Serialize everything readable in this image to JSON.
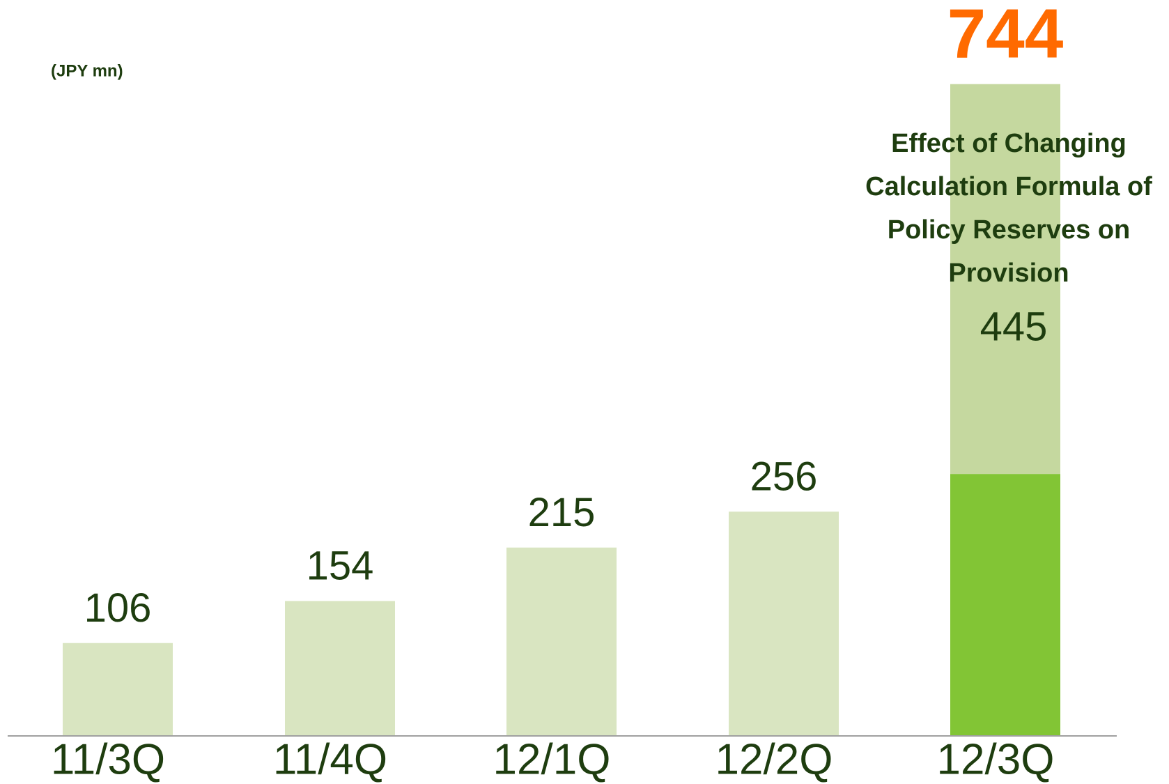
{
  "chart_data": {
    "type": "stacked_bar",
    "unit": "(JPY mn)",
    "categories": [
      "11/3Q",
      "11/4Q",
      "12/1Q",
      "12/2Q",
      "12/3Q"
    ],
    "series": [
      {
        "colors": [
          "#d9e5c1",
          "#d9e5c1",
          "#d9e5c1",
          "#d9e5c1",
          "#82c535"
        ],
        "values": [
          106,
          154,
          215,
          256,
          299
        ]
      },
      {
        "name": "Effect of Changing Calculation Formula of Policy Reserves on Provision",
        "color": "#c5d89f",
        "values": [
          null,
          null,
          null,
          null,
          445
        ]
      }
    ],
    "total": 744,
    "total_color": "#ff6a00",
    "ylim": [
      0,
      840
    ]
  }
}
